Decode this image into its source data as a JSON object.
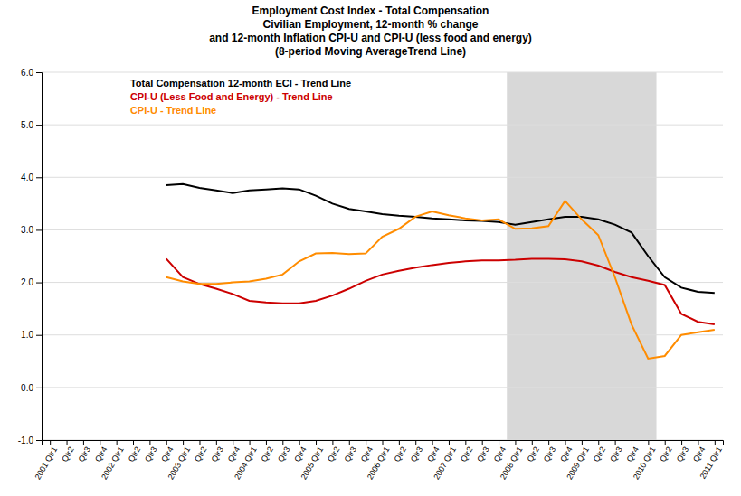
{
  "chart_data": {
    "type": "line",
    "title": "Employment Cost Index - Total Compensation\nCivilian Employment, 12-month % change\nand 12-month Inflation CPI-U and CPI-U (less food and energy)\n(8-period Moving AverageTrend Line)",
    "categories": [
      "2001 Qtr1",
      "Qtr2",
      "Qtr3",
      "Qtr4",
      "2002 Qtr1",
      "Qtr2",
      "Qtr3",
      "Qtr4",
      "2003 Qtr1",
      "Qtr2",
      "Qtr3",
      "Qtr4",
      "2004 Qtr1",
      "Qtr2",
      "Qtr3",
      "Qtr4",
      "2005 Qtr1",
      "Qtr2",
      "Qtr3",
      "Qtr4",
      "2006 Qtr1",
      "Qtr2",
      "Qtr3",
      "Qtr4",
      "2007 Qtr1",
      "Qtr2",
      "Qtr3",
      "Qtr4",
      "2008 Qtr1",
      "Qtr2",
      "Qtr3",
      "Qtr4",
      "2009 Qtr1",
      "Qtr2",
      "Qtr3",
      "Qtr4",
      "2010 Qtr1",
      "Qtr2",
      "Qtr3",
      "Qtr4",
      "2011 Qtr1"
    ],
    "series": [
      {
        "name": "Total Compensation 12-month ECI - Trend Line",
        "color": "#000000",
        "values": [
          null,
          null,
          null,
          null,
          null,
          null,
          null,
          3.85,
          3.87,
          3.8,
          3.75,
          3.7,
          3.75,
          3.77,
          3.79,
          3.77,
          3.65,
          3.5,
          3.4,
          3.35,
          3.3,
          3.27,
          3.25,
          3.22,
          3.2,
          3.18,
          3.17,
          3.15,
          3.1,
          3.15,
          3.2,
          3.25,
          3.25,
          3.2,
          3.1,
          2.95,
          2.5,
          2.1,
          1.9,
          1.82,
          1.8
        ]
      },
      {
        "name": "CPI-U (Less Food and Energy) - Trend Line",
        "color": "#cc0000",
        "values": [
          null,
          null,
          null,
          null,
          null,
          null,
          null,
          2.45,
          2.1,
          1.97,
          1.88,
          1.78,
          1.65,
          1.62,
          1.6,
          1.6,
          1.65,
          1.75,
          1.88,
          2.03,
          2.15,
          2.22,
          2.28,
          2.33,
          2.37,
          2.4,
          2.42,
          2.42,
          2.43,
          2.45,
          2.45,
          2.44,
          2.4,
          2.32,
          2.2,
          2.1,
          2.03,
          1.95,
          1.4,
          1.25,
          1.2
        ]
      },
      {
        "name": "CPI-U - Trend Line",
        "color": "#ff8c00",
        "values": [
          null,
          null,
          null,
          null,
          null,
          null,
          null,
          2.1,
          2.02,
          1.97,
          1.97,
          2.0,
          2.02,
          2.07,
          2.15,
          2.4,
          2.55,
          2.56,
          2.54,
          2.55,
          2.87,
          3.02,
          3.25,
          3.35,
          3.28,
          3.22,
          3.18,
          3.2,
          3.02,
          3.03,
          3.07,
          3.55,
          3.2,
          2.9,
          2.1,
          1.2,
          0.55,
          0.6,
          1.0,
          1.05,
          1.1
        ]
      }
    ],
    "ylim": [
      -1.0,
      6.0
    ],
    "yticks": [
      {
        "value": -1.0,
        "label": "-1.0"
      },
      {
        "value": 0.0,
        "label": "0.0"
      },
      {
        "value": 1.0,
        "label": "1.0"
      },
      {
        "value": 2.0,
        "label": "2.0"
      },
      {
        "value": 3.0,
        "label": "3.0"
      },
      {
        "value": 4.0,
        "label": "4.0"
      },
      {
        "value": 5.0,
        "label": "5.0"
      },
      {
        "value": 6.0,
        "label": "6.0"
      }
    ],
    "shade": {
      "from": "2008 Qtr1",
      "to": "2010 Qtr1",
      "color": "#d8d8d8"
    },
    "grid": true,
    "legend": "upper left"
  }
}
